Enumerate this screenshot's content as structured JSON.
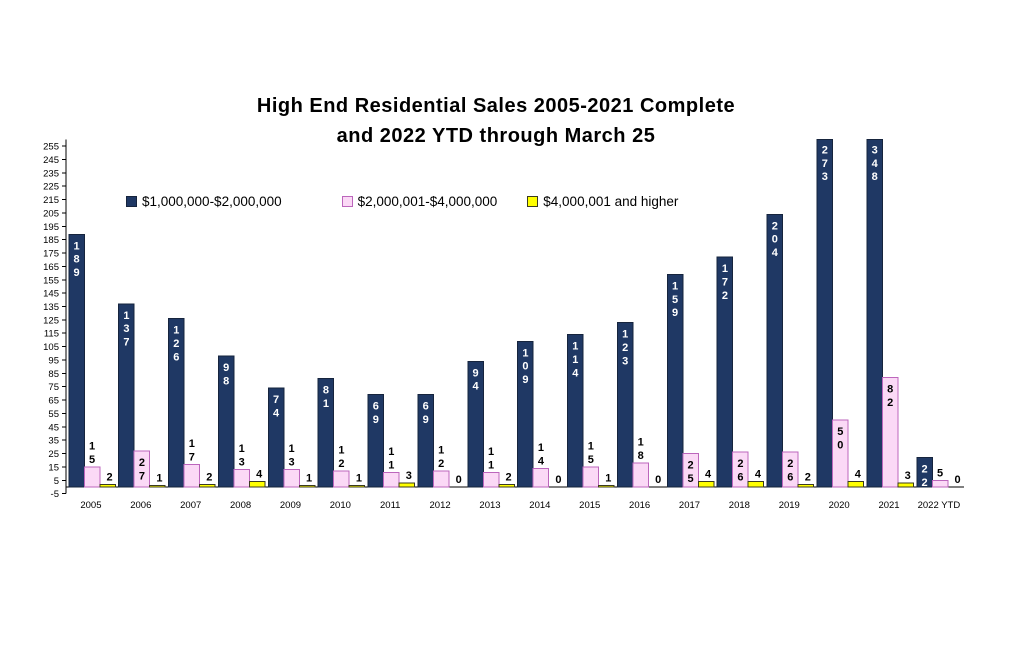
{
  "title": {
    "line1": "High End Residential Sales 2005-2021 Complete",
    "line2": "and 2022 YTD through March 25"
  },
  "chart_data": {
    "type": "bar",
    "title": "High End Residential Sales 2005-2021 Complete and 2022 YTD through March 25",
    "categories": [
      "2005",
      "2006",
      "2007",
      "2008",
      "2009",
      "2010",
      "2011",
      "2012",
      "2013",
      "2014",
      "2015",
      "2016",
      "2017",
      "2018",
      "2019",
      "2020",
      "2021",
      "2022 YTD"
    ],
    "series": [
      {
        "name": "$1,000,000-$2,000,000",
        "fill": "#1F3864",
        "stroke": "#16243D",
        "label_color": "#FFFFFF",
        "label_placement": "inside",
        "values": [
          189,
          137,
          126,
          98,
          74,
          81,
          69,
          69,
          94,
          109,
          114,
          123,
          159,
          172,
          204,
          273,
          348,
          22
        ]
      },
      {
        "name": "$2,000,001-$4,000,000",
        "fill": "#FBD9F6",
        "stroke": "#BC66BC",
        "label_color": "#000000",
        "label_placement": "auto",
        "values": [
          15,
          27,
          17,
          13,
          13,
          12,
          11,
          12,
          11,
          14,
          15,
          18,
          25,
          26,
          26,
          50,
          82,
          5
        ]
      },
      {
        "name": "$4,000,001 and higher",
        "fill": "#FFFF00",
        "stroke": "#3B3B1F",
        "label_color": "#000000",
        "label_placement": "above",
        "values": [
          2,
          1,
          2,
          4,
          1,
          1,
          3,
          0,
          2,
          0,
          1,
          0,
          4,
          4,
          2,
          4,
          3,
          0
        ]
      }
    ],
    "y_axis": {
      "min": -5,
      "max": 260,
      "tick_min": -5,
      "tick_max": 255,
      "tick_step": 10
    },
    "x_axis_label": "",
    "y_axis_label": "",
    "grid": false,
    "legend_position": "top"
  }
}
